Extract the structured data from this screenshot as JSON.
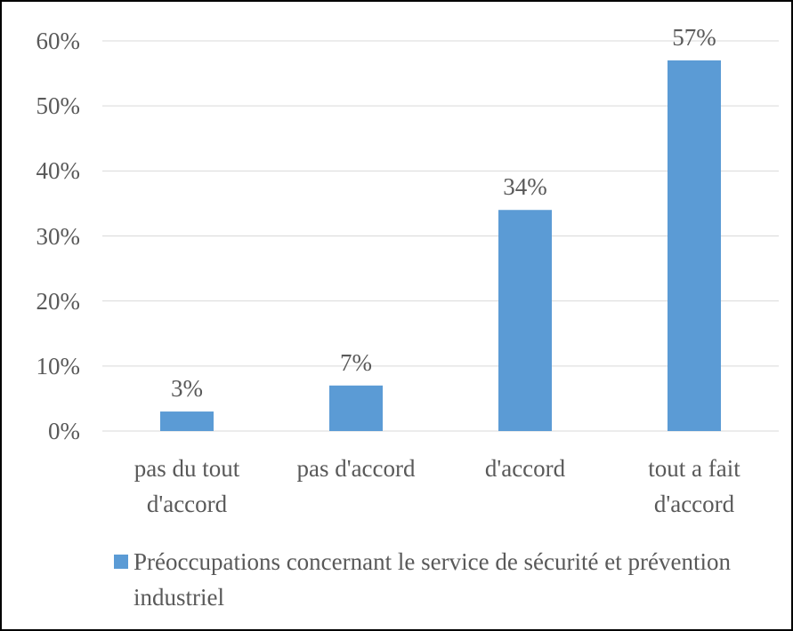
{
  "chart_data": {
    "type": "bar",
    "categories": [
      "pas du tout d'accord",
      "pas d'accord",
      "d'accord",
      "tout a fait d'accord"
    ],
    "series": [
      {
        "name": "Préoccupations concernant le service de sécurité et prévention industriel",
        "color": "#5b9bd5",
        "values": [
          3,
          7,
          34,
          57
        ],
        "value_labels": [
          "3%",
          "7%",
          "34%",
          "57%"
        ]
      }
    ],
    "ylim": [
      0,
      60
    ],
    "yticks": [
      {
        "value": 0,
        "label": "0%"
      },
      {
        "value": 10,
        "label": "10%"
      },
      {
        "value": 20,
        "label": "20%"
      },
      {
        "value": 30,
        "label": "30%"
      },
      {
        "value": 40,
        "label": "40%"
      },
      {
        "value": 50,
        "label": "50%"
      },
      {
        "value": 60,
        "label": "60%"
      }
    ],
    "grid": true,
    "legend": "bottom"
  }
}
